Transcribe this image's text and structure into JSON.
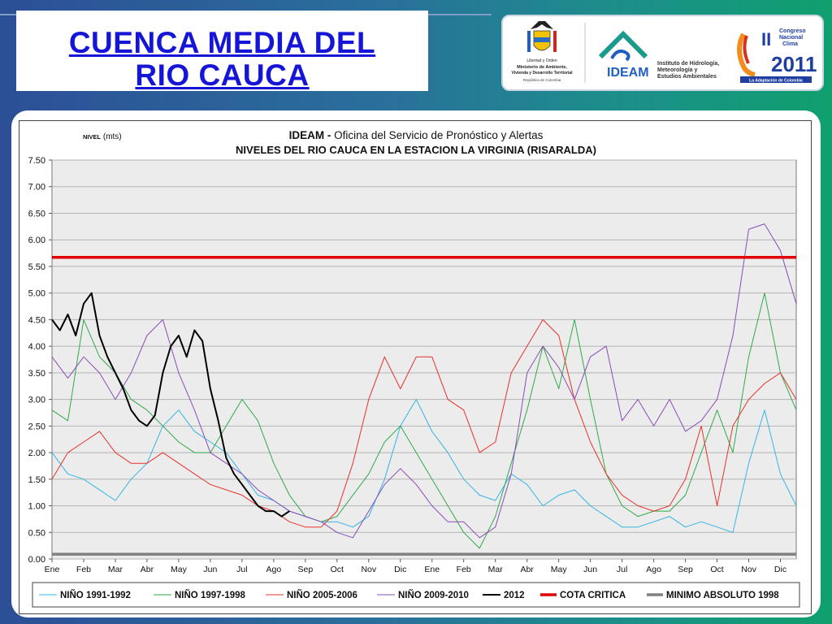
{
  "slide": {
    "title_line1": "CUENCA  MEDIA DEL",
    "title_line2": "RIO  CAUCA"
  },
  "logos": {
    "ministerio_text_1": "Libertad y Orden",
    "ministerio_text_2": "Ministerio de Ambiente,",
    "ministerio_text_3": "Vivienda y Desarrollo Territorial",
    "ministerio_text_4": "República de Colombia",
    "ideam_name": "IDEAM",
    "ideam_desc_1": "Instituto de Hidrología,",
    "ideam_desc_2": "Meteorología y",
    "ideam_desc_3": "Estudios Ambientales",
    "congreso_1": "Congreso",
    "congreso_2": "Nacional",
    "congreso_3": "Clima",
    "congreso_roman": "II",
    "congreso_year": "2011",
    "congreso_tag": "La Adaptación de Colombia"
  },
  "chart_data": {
    "type": "line",
    "title_bold": "IDEAM -",
    "title_rest": " Oficina del Servicio de Pronóstico y Alertas",
    "subtitle": "NIVELES DEL RIO CAUCA EN LA ESTACION LA VIRGINIA (RISARALDA)",
    "ylabel_small": "NIVEL",
    "ylabel_unit": " (mts)",
    "ylim": [
      0,
      7.5
    ],
    "yticks": [
      "0.00",
      "0.50",
      "1.00",
      "1.50",
      "2.00",
      "2.50",
      "3.00",
      "3.50",
      "4.00",
      "4.50",
      "5.00",
      "5.50",
      "6.00",
      "6.50",
      "7.00",
      "7.50"
    ],
    "xlim": [
      0,
      23.5
    ],
    "categories": [
      "Ene",
      "Feb",
      "Mar",
      "Abr",
      "May",
      "Jun",
      "Jul",
      "Ago",
      "Sep",
      "Oct",
      "Nov",
      "Dic",
      "Ene",
      "Feb",
      "Mar",
      "Abr",
      "May",
      "Jun",
      "Jul",
      "Ago",
      "Sep",
      "Oct",
      "Nov",
      "Dic"
    ],
    "grid": true,
    "legend_position": "bottom",
    "series": [
      {
        "name": "NIÑO 1991-1992",
        "color": "#33b5e5",
        "width": 1,
        "x": [
          0,
          0.5,
          1,
          1.5,
          2,
          2.5,
          3,
          3.5,
          4,
          4.5,
          5,
          5.5,
          6,
          6.5,
          7,
          7.5,
          8,
          8.5,
          9,
          9.5,
          10,
          10.5,
          11,
          11.5,
          12,
          12.5,
          13,
          13.5,
          14,
          14.5,
          15,
          15.5,
          16,
          16.5,
          17,
          17.5,
          18,
          18.5,
          19,
          19.5,
          20,
          20.5,
          21,
          21.5,
          22,
          22.5,
          23,
          23.5
        ],
        "y": [
          2.0,
          1.6,
          1.5,
          1.3,
          1.1,
          1.5,
          1.8,
          2.5,
          2.8,
          2.4,
          2.2,
          2.0,
          1.6,
          1.2,
          1.1,
          0.9,
          0.8,
          0.7,
          0.7,
          0.6,
          0.8,
          1.5,
          2.5,
          3.0,
          2.4,
          2.0,
          1.5,
          1.2,
          1.1,
          1.6,
          1.4,
          1.0,
          1.2,
          1.3,
          1.0,
          0.8,
          0.6,
          0.6,
          0.7,
          0.8,
          0.6,
          0.7,
          0.6,
          0.5,
          1.8,
          2.8,
          1.6,
          1.0
        ]
      },
      {
        "name": "NIÑO 1997-1998",
        "color": "#2eaa4a",
        "width": 1,
        "x": [
          0,
          0.5,
          1,
          1.5,
          2,
          2.5,
          3,
          3.5,
          4,
          4.5,
          5,
          5.5,
          6,
          6.5,
          7,
          7.5,
          8,
          8.5,
          9,
          9.5,
          10,
          10.5,
          11,
          11.5,
          12,
          12.5,
          13,
          13.5,
          14,
          14.5,
          15,
          15.5,
          16,
          16.5,
          17,
          17.5,
          18,
          18.5,
          19,
          19.5,
          20,
          20.5,
          21,
          21.5,
          22,
          22.5,
          23,
          23.5
        ],
        "y": [
          2.8,
          2.6,
          4.5,
          3.8,
          3.5,
          3.0,
          2.8,
          2.5,
          2.2,
          2.0,
          2.0,
          2.5,
          3.0,
          2.6,
          1.8,
          1.2,
          0.8,
          0.7,
          0.8,
          1.2,
          1.6,
          2.2,
          2.5,
          2.0,
          1.5,
          1.0,
          0.5,
          0.2,
          0.8,
          1.8,
          2.8,
          4.0,
          3.2,
          4.5,
          3.0,
          1.6,
          1.0,
          0.8,
          0.9,
          0.9,
          1.2,
          2.0,
          2.8,
          2.0,
          3.8,
          5.0,
          3.5,
          2.8
        ]
      },
      {
        "name": "NIÑO 2005-2006",
        "color": "#e8312a",
        "width": 1,
        "x": [
          0,
          0.5,
          1,
          1.5,
          2,
          2.5,
          3,
          3.5,
          4,
          4.5,
          5,
          5.5,
          6,
          6.5,
          7,
          7.5,
          8,
          8.5,
          9,
          9.5,
          10,
          10.5,
          11,
          11.5,
          12,
          12.5,
          13,
          13.5,
          14,
          14.5,
          15,
          15.5,
          16,
          16.5,
          17,
          17.5,
          18,
          18.5,
          19,
          19.5,
          20,
          20.5,
          21,
          21.5,
          22,
          22.5,
          23,
          23.5
        ],
        "y": [
          1.5,
          2.0,
          2.2,
          2.4,
          2.0,
          1.8,
          1.8,
          2.0,
          1.8,
          1.6,
          1.4,
          1.3,
          1.2,
          1.0,
          0.9,
          0.7,
          0.6,
          0.6,
          0.9,
          1.8,
          3.0,
          3.8,
          3.2,
          3.8,
          3.8,
          3.0,
          2.8,
          2.0,
          2.2,
          3.5,
          4.0,
          4.5,
          4.2,
          3.0,
          2.2,
          1.6,
          1.2,
          1.0,
          0.9,
          1.0,
          1.5,
          2.5,
          1.0,
          2.5,
          3.0,
          3.3,
          3.5,
          3.0
        ]
      },
      {
        "name": "NIÑO 2009-2010",
        "color": "#8a4cb8",
        "width": 1,
        "x": [
          0,
          0.5,
          1,
          1.5,
          2,
          2.5,
          3,
          3.5,
          4,
          4.5,
          5,
          5.5,
          6,
          6.5,
          7,
          7.5,
          8,
          8.5,
          9,
          9.5,
          10,
          10.5,
          11,
          11.5,
          12,
          12.5,
          13,
          13.5,
          14,
          14.5,
          15,
          15.5,
          16,
          16.5,
          17,
          17.5,
          18,
          18.5,
          19,
          19.5,
          20,
          20.5,
          21,
          21.5,
          22,
          22.5,
          23,
          23.5
        ],
        "y": [
          3.8,
          3.4,
          3.8,
          3.5,
          3.0,
          3.5,
          4.2,
          4.5,
          3.5,
          2.8,
          2.0,
          1.8,
          1.6,
          1.3,
          1.1,
          0.9,
          0.8,
          0.7,
          0.5,
          0.4,
          0.9,
          1.4,
          1.7,
          1.4,
          1.0,
          0.7,
          0.7,
          0.4,
          0.6,
          1.6,
          3.5,
          4.0,
          3.6,
          3.0,
          3.8,
          4.0,
          2.6,
          3.0,
          2.5,
          3.0,
          2.4,
          2.6,
          3.0,
          4.2,
          6.2,
          6.3,
          5.8,
          4.8
        ]
      },
      {
        "name": "2012",
        "color": "#000000",
        "width": 2,
        "x": [
          0,
          0.25,
          0.5,
          0.75,
          1,
          1.25,
          1.5,
          1.75,
          2,
          2.25,
          2.5,
          2.75,
          3,
          3.25,
          3.5,
          3.75,
          4,
          4.25,
          4.5,
          4.75,
          5,
          5.25,
          5.5,
          5.75,
          6,
          6.25,
          6.5,
          6.75,
          7,
          7.25,
          7.5
        ],
        "y": [
          4.5,
          4.3,
          4.6,
          4.2,
          4.8,
          5.0,
          4.2,
          3.8,
          3.5,
          3.2,
          2.8,
          2.6,
          2.5,
          2.7,
          3.5,
          4.0,
          4.2,
          3.8,
          4.3,
          4.1,
          3.2,
          2.6,
          1.9,
          1.6,
          1.4,
          1.2,
          1.0,
          0.9,
          0.9,
          0.8,
          0.9
        ]
      },
      {
        "name": "COTA CRITICA",
        "color": "#e00000",
        "width": 3.5,
        "x": [
          0,
          23.5
        ],
        "y": [
          5.67,
          5.67
        ]
      },
      {
        "name": "MINIMO ABSOLUTO 1998",
        "color": "#808080",
        "width": 3.5,
        "x": [
          0,
          23.5
        ],
        "y": [
          0.09,
          0.09
        ]
      }
    ]
  }
}
